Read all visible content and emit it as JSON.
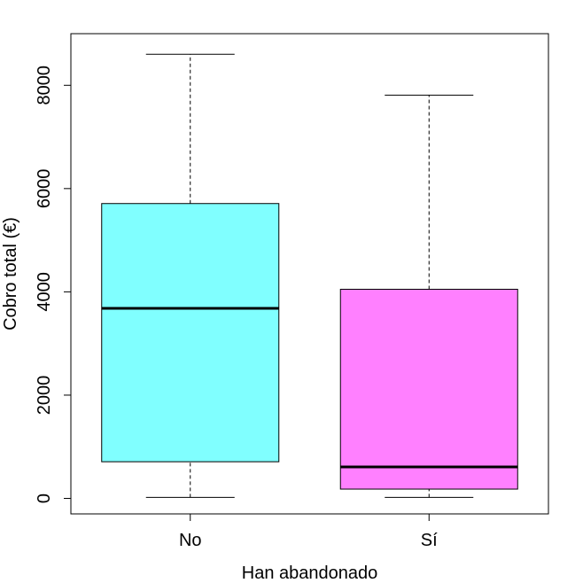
{
  "chart_data": {
    "type": "boxplot",
    "xlabel": "Han abandonado",
    "ylabel": "Cobro total (€)",
    "categories": [
      "No",
      "Sí"
    ],
    "ylim": [
      -300,
      9000
    ],
    "yticks": [
      0,
      2000,
      4000,
      6000,
      8000
    ],
    "grid": false,
    "boxes": [
      {
        "label": "No",
        "whisker_low": 20,
        "q1": 710,
        "median": 3680,
        "q3": 5710,
        "whisker_high": 8600,
        "color": "#80FFFF"
      },
      {
        "label": "Sí",
        "whisker_low": 20,
        "q1": 180,
        "median": 610,
        "q3": 4050,
        "whisker_high": 7810,
        "color": "#FF80FF"
      }
    ]
  }
}
